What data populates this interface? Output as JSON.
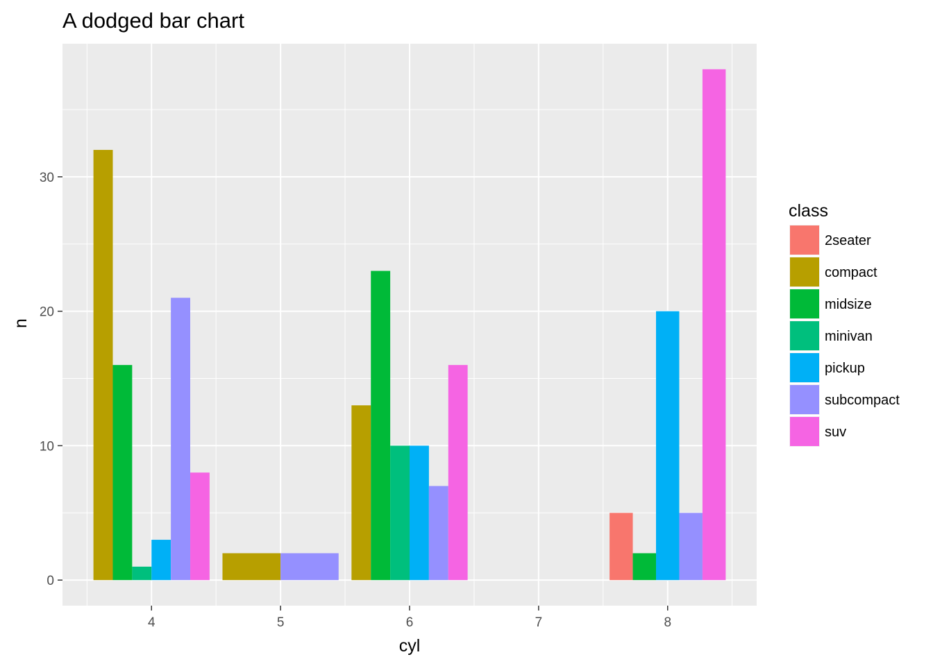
{
  "chart_data": {
    "type": "bar",
    "title": "A dodged bar chart",
    "xlabel": "cyl",
    "ylabel": "n",
    "x_ticks": [
      "4",
      "5",
      "6",
      "7",
      "8"
    ],
    "y_ticks": [
      "0",
      "10",
      "20",
      "30"
    ],
    "ylim": [
      -1.9,
      39.9
    ],
    "grid": true,
    "legend": {
      "title": "class",
      "placement": "right"
    },
    "classes": [
      {
        "name": "2seater",
        "color": "#F8766D"
      },
      {
        "name": "compact",
        "color": "#B79F00"
      },
      {
        "name": "midsize",
        "color": "#00BA38"
      },
      {
        "name": "minivan",
        "color": "#00BF7D"
      },
      {
        "name": "pickup",
        "color": "#00B0F6"
      },
      {
        "name": "subcompact",
        "color": "#9590FF"
      },
      {
        "name": "suv",
        "color": "#F564E3"
      }
    ],
    "groups": [
      {
        "cyl": 4,
        "bars": [
          {
            "class": "compact",
            "n": 32
          },
          {
            "class": "midsize",
            "n": 16
          },
          {
            "class": "minivan",
            "n": 1
          },
          {
            "class": "pickup",
            "n": 3
          },
          {
            "class": "subcompact",
            "n": 21
          },
          {
            "class": "suv",
            "n": 8
          }
        ]
      },
      {
        "cyl": 5,
        "bars": [
          {
            "class": "compact",
            "n": 2
          },
          {
            "class": "subcompact",
            "n": 2
          }
        ]
      },
      {
        "cyl": 6,
        "bars": [
          {
            "class": "compact",
            "n": 13
          },
          {
            "class": "midsize",
            "n": 23
          },
          {
            "class": "minivan",
            "n": 10
          },
          {
            "class": "pickup",
            "n": 10
          },
          {
            "class": "subcompact",
            "n": 7
          },
          {
            "class": "suv",
            "n": 16
          }
        ]
      },
      {
        "cyl": 8,
        "bars": [
          {
            "class": "2seater",
            "n": 5
          },
          {
            "class": "midsize",
            "n": 2
          },
          {
            "class": "pickup",
            "n": 20
          },
          {
            "class": "subcompact",
            "n": 5
          },
          {
            "class": "suv",
            "n": 38
          }
        ]
      }
    ]
  }
}
